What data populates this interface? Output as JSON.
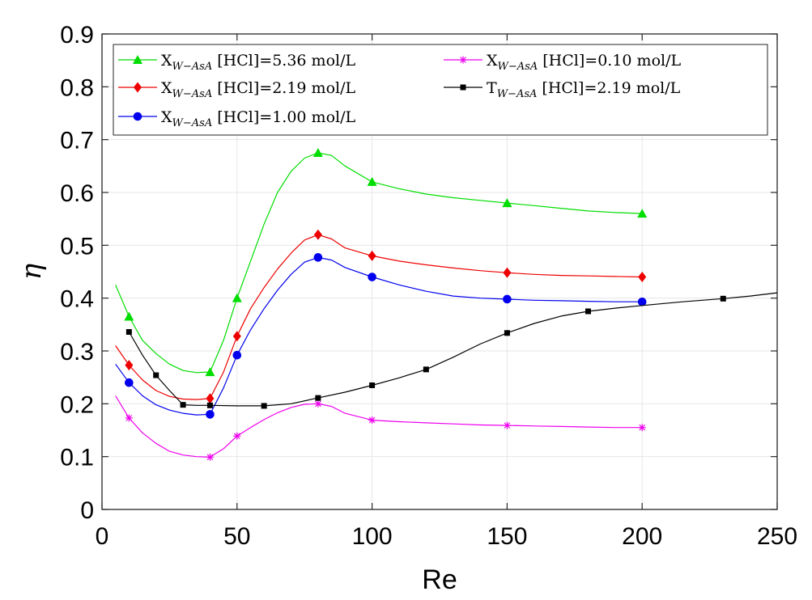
{
  "chart_data": {
    "type": "line",
    "xlabel": "Re",
    "ylabel": "η",
    "xlim": [
      0,
      250
    ],
    "ylim": [
      0,
      0.9
    ],
    "xticks": [
      "0",
      "50",
      "100",
      "150",
      "200",
      "250"
    ],
    "yticks": [
      "0",
      "0.1",
      "0.2",
      "0.3",
      "0.4",
      "0.5",
      "0.6",
      "0.7",
      "0.8",
      "0.9"
    ],
    "grid": true,
    "legend_position": "top-right",
    "series": [
      {
        "name": "X_{W-AsA} [HCl]=5.36 mol/L",
        "legend_main": "X",
        "legend_sub": "W−AsA",
        "legend_rest": " [HCl]=5.36 mol/L",
        "color": "#00dd00",
        "marker": "triangle",
        "points": [
          [
            10,
            0.365
          ],
          [
            40,
            0.26
          ],
          [
            50,
            0.4
          ],
          [
            80,
            0.675
          ],
          [
            100,
            0.62
          ],
          [
            150,
            0.58
          ],
          [
            200,
            0.56
          ]
        ],
        "curve": [
          [
            5,
            0.425
          ],
          [
            10,
            0.365
          ],
          [
            15,
            0.32
          ],
          [
            20,
            0.295
          ],
          [
            25,
            0.275
          ],
          [
            30,
            0.263
          ],
          [
            35,
            0.259
          ],
          [
            40,
            0.26
          ],
          [
            45,
            0.32
          ],
          [
            50,
            0.4
          ],
          [
            55,
            0.47
          ],
          [
            60,
            0.54
          ],
          [
            65,
            0.6
          ],
          [
            70,
            0.64
          ],
          [
            75,
            0.665
          ],
          [
            80,
            0.675
          ],
          [
            85,
            0.67
          ],
          [
            90,
            0.65
          ],
          [
            100,
            0.62
          ],
          [
            110,
            0.607
          ],
          [
            120,
            0.597
          ],
          [
            130,
            0.59
          ],
          [
            140,
            0.585
          ],
          [
            150,
            0.58
          ],
          [
            160,
            0.575
          ],
          [
            170,
            0.57
          ],
          [
            180,
            0.565
          ],
          [
            190,
            0.562
          ],
          [
            200,
            0.56
          ]
        ]
      },
      {
        "name": "X_{W-AsA} [HCl]=2.19 mol/L",
        "legend_main": "X",
        "legend_sub": "W−AsA",
        "legend_rest": " [HCl]=2.19 mol/L",
        "color": "#ee0000",
        "marker": "diamond",
        "points": [
          [
            10,
            0.273
          ],
          [
            40,
            0.21
          ],
          [
            50,
            0.328
          ],
          [
            80,
            0.52
          ],
          [
            100,
            0.48
          ],
          [
            150,
            0.448
          ],
          [
            200,
            0.44
          ]
        ],
        "curve": [
          [
            5,
            0.31
          ],
          [
            10,
            0.273
          ],
          [
            15,
            0.245
          ],
          [
            20,
            0.225
          ],
          [
            25,
            0.214
          ],
          [
            30,
            0.209
          ],
          [
            35,
            0.208
          ],
          [
            40,
            0.21
          ],
          [
            45,
            0.26
          ],
          [
            50,
            0.328
          ],
          [
            55,
            0.38
          ],
          [
            60,
            0.42
          ],
          [
            65,
            0.455
          ],
          [
            70,
            0.485
          ],
          [
            75,
            0.51
          ],
          [
            80,
            0.52
          ],
          [
            85,
            0.512
          ],
          [
            90,
            0.495
          ],
          [
            100,
            0.48
          ],
          [
            110,
            0.47
          ],
          [
            120,
            0.463
          ],
          [
            130,
            0.457
          ],
          [
            140,
            0.452
          ],
          [
            150,
            0.448
          ],
          [
            160,
            0.445
          ],
          [
            170,
            0.443
          ],
          [
            180,
            0.442
          ],
          [
            190,
            0.441
          ],
          [
            200,
            0.44
          ]
        ]
      },
      {
        "name": "X_{W-AsA} [HCl]=1.00 mol/L",
        "legend_main": "X",
        "legend_sub": "W−AsA",
        "legend_rest": " [HCl]=1.00 mol/L",
        "color": "#0000ee",
        "marker": "circle",
        "points": [
          [
            10,
            0.24
          ],
          [
            40,
            0.18
          ],
          [
            50,
            0.292
          ],
          [
            80,
            0.477
          ],
          [
            100,
            0.44
          ],
          [
            150,
            0.398
          ],
          [
            200,
            0.393
          ]
        ],
        "curve": [
          [
            5,
            0.275
          ],
          [
            10,
            0.24
          ],
          [
            15,
            0.215
          ],
          [
            20,
            0.198
          ],
          [
            25,
            0.188
          ],
          [
            30,
            0.182
          ],
          [
            35,
            0.179
          ],
          [
            40,
            0.18
          ],
          [
            45,
            0.23
          ],
          [
            50,
            0.292
          ],
          [
            55,
            0.34
          ],
          [
            60,
            0.38
          ],
          [
            65,
            0.415
          ],
          [
            70,
            0.445
          ],
          [
            75,
            0.468
          ],
          [
            80,
            0.477
          ],
          [
            85,
            0.472
          ],
          [
            90,
            0.458
          ],
          [
            100,
            0.44
          ],
          [
            110,
            0.425
          ],
          [
            120,
            0.413
          ],
          [
            130,
            0.404
          ],
          [
            140,
            0.4
          ],
          [
            150,
            0.398
          ],
          [
            160,
            0.396
          ],
          [
            170,
            0.395
          ],
          [
            180,
            0.394
          ],
          [
            190,
            0.393
          ],
          [
            200,
            0.393
          ]
        ]
      },
      {
        "name": "X_{W-AsA} [HCl]=0.10 mol/L",
        "legend_main": "X",
        "legend_sub": "W−AsA",
        "legend_rest": " [HCl]=0.10 mol/L",
        "color": "#ee00ee",
        "marker": "asterisk",
        "points": [
          [
            10,
            0.173
          ],
          [
            40,
            0.099
          ],
          [
            50,
            0.139
          ],
          [
            80,
            0.2
          ],
          [
            100,
            0.169
          ],
          [
            150,
            0.159
          ],
          [
            200,
            0.155
          ]
        ],
        "curve": [
          [
            5,
            0.215
          ],
          [
            10,
            0.173
          ],
          [
            15,
            0.145
          ],
          [
            20,
            0.125
          ],
          [
            25,
            0.11
          ],
          [
            30,
            0.103
          ],
          [
            35,
            0.1
          ],
          [
            40,
            0.099
          ],
          [
            45,
            0.115
          ],
          [
            50,
            0.139
          ],
          [
            55,
            0.155
          ],
          [
            60,
            0.17
          ],
          [
            65,
            0.183
          ],
          [
            70,
            0.193
          ],
          [
            75,
            0.199
          ],
          [
            80,
            0.2
          ],
          [
            85,
            0.195
          ],
          [
            90,
            0.182
          ],
          [
            100,
            0.169
          ],
          [
            110,
            0.166
          ],
          [
            120,
            0.164
          ],
          [
            130,
            0.162
          ],
          [
            140,
            0.16
          ],
          [
            150,
            0.159
          ],
          [
            160,
            0.158
          ],
          [
            170,
            0.157
          ],
          [
            180,
            0.156
          ],
          [
            190,
            0.155
          ],
          [
            200,
            0.155
          ]
        ]
      },
      {
        "name": "T_{W-AsA} [HCl]=2.19 mol/L",
        "legend_main": "T",
        "legend_sub": "W−AsA",
        "legend_rest": " [HCl]=2.19 mol/L",
        "color": "#000000",
        "marker": "square",
        "points": [
          [
            10,
            0.336
          ],
          [
            20,
            0.254
          ],
          [
            30,
            0.198
          ],
          [
            40,
            0.197
          ],
          [
            60,
            0.196
          ],
          [
            80,
            0.211
          ],
          [
            100,
            0.235
          ],
          [
            120,
            0.265
          ],
          [
            150,
            0.334
          ],
          [
            180,
            0.375
          ],
          [
            230,
            0.399
          ]
        ],
        "curve": [
          [
            10,
            0.336
          ],
          [
            15,
            0.292
          ],
          [
            20,
            0.254
          ],
          [
            25,
            0.225
          ],
          [
            30,
            0.198
          ],
          [
            35,
            0.197
          ],
          [
            40,
            0.197
          ],
          [
            50,
            0.196
          ],
          [
            60,
            0.196
          ],
          [
            70,
            0.2
          ],
          [
            80,
            0.211
          ],
          [
            90,
            0.222
          ],
          [
            100,
            0.235
          ],
          [
            110,
            0.249
          ],
          [
            120,
            0.265
          ],
          [
            130,
            0.288
          ],
          [
            140,
            0.313
          ],
          [
            150,
            0.334
          ],
          [
            160,
            0.352
          ],
          [
            170,
            0.366
          ],
          [
            180,
            0.375
          ],
          [
            190,
            0.381
          ],
          [
            200,
            0.386
          ],
          [
            215,
            0.393
          ],
          [
            230,
            0.399
          ],
          [
            240,
            0.404
          ],
          [
            250,
            0.41
          ]
        ]
      }
    ]
  }
}
